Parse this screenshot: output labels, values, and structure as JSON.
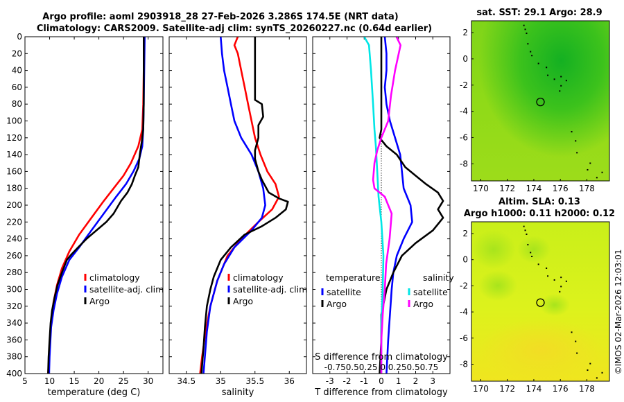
{
  "title": {
    "line1": "Argo profile: aoml 2903918_28 27-Feb-2026 3.286S 174.5E (NRT data)",
    "line2": "Climatology: CARS2009. Satellite-adj clim: synTS_20260227.nc (0.64d earlier)"
  },
  "copyright": "©IMOS 02-Mar-2026 12:03:01",
  "colors": {
    "climatology": "#ff0000",
    "satellite": "#0000ff",
    "argo": "#000000",
    "sal_satellite": "#00e6e6",
    "sal_argo": "#ff00ff"
  },
  "chart_data": [
    {
      "id": "temperature",
      "type": "line",
      "xlabel": "temperature (deg C)",
      "ylabel": "",
      "xlim": [
        5,
        33
      ],
      "ylim": [
        400,
        0
      ],
      "xticks": [
        5,
        10,
        15,
        20,
        25,
        30
      ],
      "yticks": [
        0,
        20,
        40,
        60,
        80,
        100,
        120,
        140,
        160,
        180,
        200,
        220,
        240,
        260,
        280,
        300,
        320,
        340,
        360,
        380,
        400
      ],
      "legend": [
        "climatology",
        "satellite-adj. clim",
        "Argo"
      ],
      "series": [
        {
          "name": "climatology",
          "color": "#ff0000",
          "points": [
            [
              29.1,
              0
            ],
            [
              29.1,
              40
            ],
            [
              29.0,
              80
            ],
            [
              28.8,
              110
            ],
            [
              28.0,
              130
            ],
            [
              26.5,
              150
            ],
            [
              25.0,
              165
            ],
            [
              23.0,
              180
            ],
            [
              21.0,
              195
            ],
            [
              18.5,
              215
            ],
            [
              16.0,
              235
            ],
            [
              14.0,
              255
            ],
            [
              12.5,
              275
            ],
            [
              11.5,
              295
            ],
            [
              10.8,
              315
            ],
            [
              10.3,
              340
            ],
            [
              10.0,
              370
            ],
            [
              9.7,
              400
            ]
          ]
        },
        {
          "name": "satellite-adj. clim",
          "color": "#0000ff",
          "points": [
            [
              29.3,
              0
            ],
            [
              29.2,
              40
            ],
            [
              29.1,
              80
            ],
            [
              29.0,
              110
            ],
            [
              28.8,
              130
            ],
            [
              28.2,
              145
            ],
            [
              27.0,
              160
            ],
            [
              25.5,
              175
            ],
            [
              23.5,
              190
            ],
            [
              21.0,
              210
            ],
            [
              18.5,
              230
            ],
            [
              16.0,
              250
            ],
            [
              14.0,
              265
            ],
            [
              12.5,
              285
            ],
            [
              11.5,
              305
            ],
            [
              10.8,
              325
            ],
            [
              10.3,
              345
            ],
            [
              10.0,
              380
            ],
            [
              9.9,
              400
            ]
          ]
        },
        {
          "name": "Argo",
          "color": "#000000",
          "points": [
            [
              29.1,
              0
            ],
            [
              29.1,
              40
            ],
            [
              29.1,
              80
            ],
            [
              29.0,
              110
            ],
            [
              28.7,
              125
            ],
            [
              28.3,
              140
            ],
            [
              28.0,
              155
            ],
            [
              27.3,
              165
            ],
            [
              26.7,
              175
            ],
            [
              25.8,
              185
            ],
            [
              24.5,
              195
            ],
            [
              23.0,
              210
            ],
            [
              21.5,
              220
            ],
            [
              19.5,
              230
            ],
            [
              17.5,
              240
            ],
            [
              15.8,
              250
            ],
            [
              14.5,
              258
            ],
            [
              13.5,
              265
            ],
            [
              12.5,
              280
            ],
            [
              11.6,
              295
            ],
            [
              11.0,
              310
            ],
            [
              10.5,
              325
            ],
            [
              10.2,
              340
            ],
            [
              10.0,
              360
            ],
            [
              9.8,
              380
            ],
            [
              9.7,
              400
            ]
          ]
        }
      ]
    },
    {
      "id": "salinity",
      "type": "line",
      "xlabel": "salinity",
      "ylabel": "",
      "xlim": [
        34.25,
        36.25
      ],
      "ylim": [
        400,
        0
      ],
      "xticks": [
        34.5,
        35,
        35.5,
        36
      ],
      "legend": [
        "climatology",
        "satellite-adj. clim",
        "Argo"
      ],
      "series": [
        {
          "name": "climatology",
          "color": "#ff0000",
          "points": [
            [
              35.25,
              0
            ],
            [
              35.2,
              10
            ],
            [
              35.25,
              20
            ],
            [
              35.3,
              40
            ],
            [
              35.35,
              60
            ],
            [
              35.4,
              80
            ],
            [
              35.45,
              100
            ],
            [
              35.5,
              120
            ],
            [
              35.58,
              140
            ],
            [
              35.68,
              160
            ],
            [
              35.8,
              175
            ],
            [
              35.85,
              190
            ],
            [
              35.75,
              205
            ],
            [
              35.55,
              220
            ],
            [
              35.3,
              240
            ],
            [
              35.1,
              260
            ],
            [
              34.95,
              290
            ],
            [
              34.85,
              320
            ],
            [
              34.78,
              350
            ],
            [
              34.73,
              380
            ],
            [
              34.7,
              400
            ]
          ]
        },
        {
          "name": "satellite-adj. clim",
          "color": "#0000ff",
          "points": [
            [
              35.0,
              0
            ],
            [
              35.02,
              20
            ],
            [
              35.05,
              40
            ],
            [
              35.1,
              60
            ],
            [
              35.15,
              80
            ],
            [
              35.2,
              100
            ],
            [
              35.3,
              120
            ],
            [
              35.45,
              140
            ],
            [
              35.55,
              160
            ],
            [
              35.62,
              180
            ],
            [
              35.65,
              200
            ],
            [
              35.6,
              215
            ],
            [
              35.45,
              230
            ],
            [
              35.2,
              250
            ],
            [
              35.05,
              270
            ],
            [
              34.95,
              290
            ],
            [
              34.85,
              320
            ],
            [
              34.8,
              350
            ],
            [
              34.77,
              380
            ],
            [
              34.75,
              400
            ]
          ]
        },
        {
          "name": "Argo",
          "color": "#000000",
          "points": [
            [
              35.5,
              0
            ],
            [
              35.5,
              30
            ],
            [
              35.5,
              60
            ],
            [
              35.5,
              75
            ],
            [
              35.6,
              80
            ],
            [
              35.62,
              95
            ],
            [
              35.55,
              105
            ],
            [
              35.55,
              120
            ],
            [
              35.5,
              135
            ],
            [
              35.5,
              145
            ],
            [
              35.55,
              160
            ],
            [
              35.6,
              170
            ],
            [
              35.7,
              185
            ],
            [
              35.85,
              192
            ],
            [
              35.98,
              196
            ],
            [
              35.95,
              205
            ],
            [
              35.8,
              215
            ],
            [
              35.6,
              225
            ],
            [
              35.35,
              235
            ],
            [
              35.15,
              250
            ],
            [
              35.0,
              265
            ],
            [
              34.9,
              285
            ],
            [
              34.85,
              300
            ],
            [
              34.8,
              320
            ],
            [
              34.77,
              345
            ],
            [
              34.75,
              370
            ],
            [
              34.72,
              400
            ]
          ]
        }
      ]
    },
    {
      "id": "difference",
      "type": "line",
      "xlabel": "T difference from climatology",
      "top_xlabel": "S difference from climatology",
      "xlim": [
        -4,
        4
      ],
      "ylim": [
        400,
        0
      ],
      "xticks": [
        -3,
        -2,
        -1,
        0,
        1,
        2,
        3
      ],
      "top_xticks": [
        -0.75,
        -0.5,
        0.25,
        0,
        0.25,
        0.5,
        0.75
      ],
      "top_ticklabels_text": "-0.750.50.25 0 0.250.50.75",
      "legend": {
        "temperature_title": "temperature",
        "salinity_title": "salinity",
        "temperature": [
          "satellite",
          "Argo"
        ],
        "salinity": [
          "satellite",
          "Argo"
        ]
      },
      "series": [
        {
          "name": "T satellite",
          "color": "#0000ff",
          "points": [
            [
              0.2,
              0
            ],
            [
              0.3,
              20
            ],
            [
              0.3,
              40
            ],
            [
              0.2,
              60
            ],
            [
              0.3,
              80
            ],
            [
              0.5,
              100
            ],
            [
              0.8,
              120
            ],
            [
              1.1,
              140
            ],
            [
              1.2,
              160
            ],
            [
              1.3,
              180
            ],
            [
              1.7,
              200
            ],
            [
              1.8,
              220
            ],
            [
              1.3,
              240
            ],
            [
              0.9,
              260
            ],
            [
              0.7,
              280
            ],
            [
              0.6,
              300
            ],
            [
              0.5,
              330
            ],
            [
              0.4,
              360
            ],
            [
              0.3,
              400
            ]
          ]
        },
        {
          "name": "T Argo",
          "color": "#000000",
          "points": [
            [
              0.0,
              0
            ],
            [
              0.0,
              80
            ],
            [
              0.0,
              110
            ],
            [
              -0.1,
              120
            ],
            [
              0.3,
              130
            ],
            [
              0.9,
              140
            ],
            [
              1.4,
              155
            ],
            [
              2.0,
              165
            ],
            [
              2.6,
              175
            ],
            [
              3.3,
              185
            ],
            [
              3.6,
              195
            ],
            [
              3.3,
              205
            ],
            [
              3.6,
              215
            ],
            [
              3.0,
              230
            ],
            [
              2.0,
              245
            ],
            [
              1.2,
              260
            ],
            [
              0.7,
              280
            ],
            [
              0.3,
              300
            ],
            [
              0.0,
              330
            ],
            [
              0.0,
              360
            ],
            [
              -0.1,
              400
            ]
          ]
        },
        {
          "name": "S satellite",
          "color": "#00e6e6",
          "points": [
            [
              -0.25,
              0
            ],
            [
              -0.18,
              10
            ],
            [
              -0.15,
              40
            ],
            [
              -0.12,
              80
            ],
            [
              -0.1,
              110
            ],
            [
              -0.08,
              130
            ],
            [
              -0.06,
              160
            ],
            [
              -0.04,
              190
            ],
            [
              0.0,
              220
            ],
            [
              0.03,
              260
            ],
            [
              0.02,
              300
            ],
            [
              0.0,
              340
            ],
            [
              0.0,
              400
            ]
          ]
        },
        {
          "name": "S Argo",
          "color": "#ff00ff",
          "points": [
            [
              0.22,
              0
            ],
            [
              0.28,
              10
            ],
            [
              0.2,
              40
            ],
            [
              0.14,
              70
            ],
            [
              0.1,
              100
            ],
            [
              0.0,
              120
            ],
            [
              -0.06,
              135
            ],
            [
              -0.1,
              150
            ],
            [
              -0.12,
              170
            ],
            [
              -0.1,
              180
            ],
            [
              0.05,
              190
            ],
            [
              0.1,
              200
            ],
            [
              0.15,
              210
            ],
            [
              0.12,
              240
            ],
            [
              0.07,
              270
            ],
            [
              0.05,
              300
            ],
            [
              0.02,
              330
            ],
            [
              0.0,
              360
            ],
            [
              0.0,
              400
            ]
          ]
        }
      ]
    },
    {
      "id": "sst_map",
      "type": "heatmap",
      "title": "sat. SST: 29.1 Argo: 28.9",
      "xlim": [
        169.3,
        179.7
      ],
      "ylim": [
        -9.3,
        2.9
      ],
      "xticks": [
        170,
        172,
        174,
        176,
        178
      ],
      "yticks": [
        2,
        0,
        -2,
        -4,
        -6,
        -8
      ],
      "marker": {
        "lon": 174.5,
        "lat": -3.286
      }
    },
    {
      "id": "sla_map",
      "type": "heatmap",
      "title": "Altim. SLA: 0.13",
      "subtitle": "Argo h1000: 0.11 h2000: 0.12",
      "xlim": [
        169.3,
        179.7
      ],
      "ylim": [
        -9.3,
        2.9
      ],
      "xticks": [
        170,
        172,
        174,
        176,
        178
      ],
      "yticks": [
        2,
        0,
        -2,
        -4,
        -6,
        -8
      ],
      "marker": {
        "lon": 174.5,
        "lat": -3.286
      }
    }
  ]
}
